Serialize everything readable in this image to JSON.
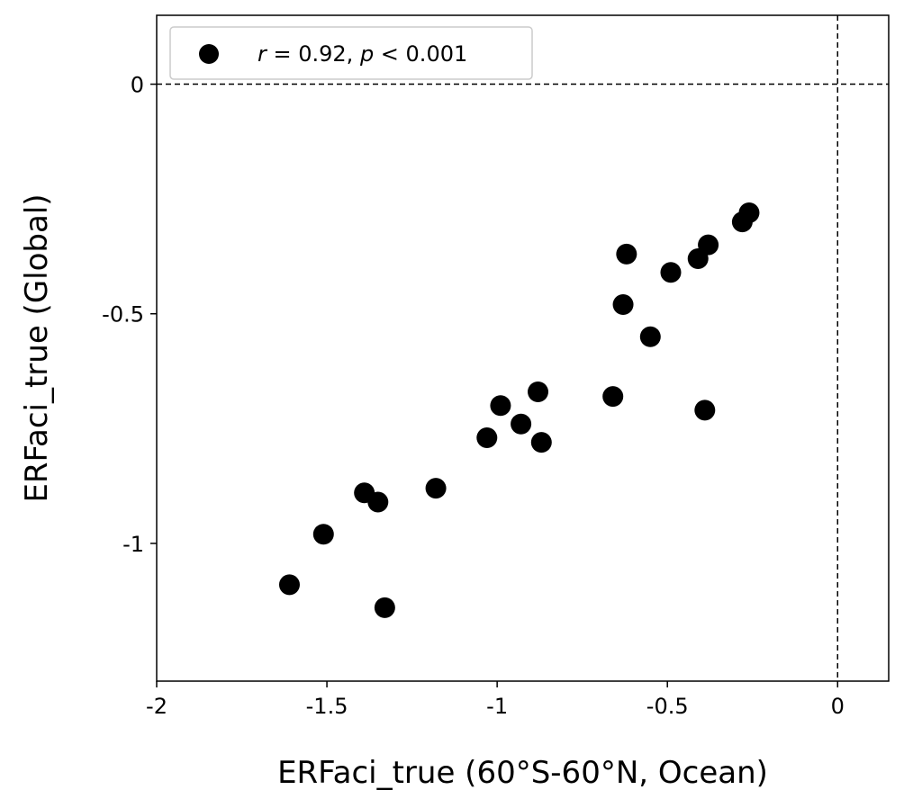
{
  "chart_data": {
    "type": "scatter",
    "xlabel": "ERFaci_true (60°S-60°N, Ocean)",
    "ylabel": "ERFaci_true (Global)",
    "xlim": [
      -2,
      0.15
    ],
    "ylim": [
      -1.3,
      0.15
    ],
    "x_ticks": [
      -2,
      -1.5,
      -1,
      -0.5,
      0
    ],
    "x_tick_labels": [
      "-2",
      "-1.5",
      "-1",
      "-0.5",
      "0"
    ],
    "y_ticks": [
      0,
      -0.5,
      -1
    ],
    "y_tick_labels": [
      "0",
      "-0.5",
      "-1"
    ],
    "reference_lines": {
      "x": 0,
      "y": 0,
      "style": "dashed"
    },
    "grid": false,
    "legend": {
      "placement": "top-left",
      "r_label": "r",
      "r_text": " = 0.92, ",
      "p_label": "p",
      "p_text": " < 0.001"
    },
    "marker_color": "#000000",
    "points": [
      {
        "x": -1.61,
        "y": -1.09
      },
      {
        "x": -1.51,
        "y": -0.98
      },
      {
        "x": -1.33,
        "y": -1.14
      },
      {
        "x": -1.39,
        "y": -0.89
      },
      {
        "x": -1.35,
        "y": -0.91
      },
      {
        "x": -1.18,
        "y": -0.88
      },
      {
        "x": -1.03,
        "y": -0.77
      },
      {
        "x": -0.99,
        "y": -0.7
      },
      {
        "x": -0.93,
        "y": -0.74
      },
      {
        "x": -0.88,
        "y": -0.67
      },
      {
        "x": -0.87,
        "y": -0.78
      },
      {
        "x": -0.66,
        "y": -0.68
      },
      {
        "x": -0.63,
        "y": -0.48
      },
      {
        "x": -0.62,
        "y": -0.37
      },
      {
        "x": -0.55,
        "y": -0.55
      },
      {
        "x": -0.49,
        "y": -0.41
      },
      {
        "x": -0.41,
        "y": -0.38
      },
      {
        "x": -0.39,
        "y": -0.71
      },
      {
        "x": -0.38,
        "y": -0.35
      },
      {
        "x": -0.28,
        "y": -0.3
      },
      {
        "x": -0.26,
        "y": -0.28
      }
    ]
  }
}
